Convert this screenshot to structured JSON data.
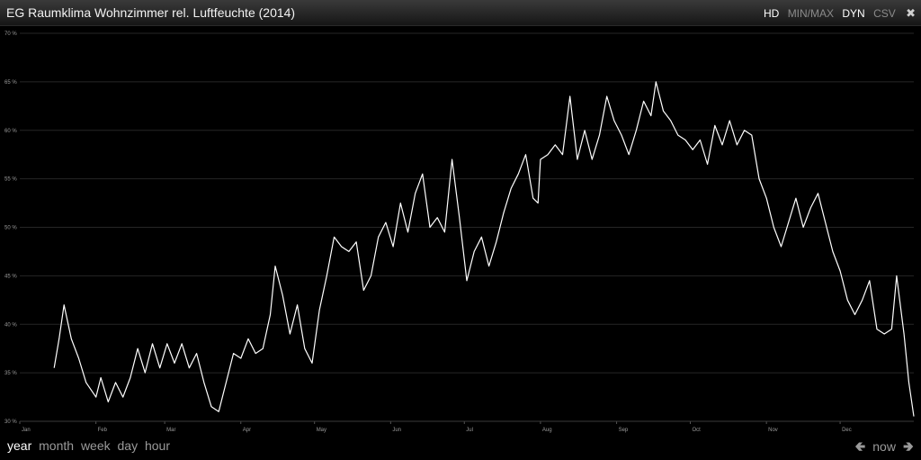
{
  "title": "EG Raumklima Wohnzimmer rel. Luftfeuchte (2014)",
  "modes": [
    {
      "label": "HD",
      "active": true
    },
    {
      "label": "MIN/MAX",
      "active": false
    },
    {
      "label": "DYN",
      "active": true
    },
    {
      "label": "CSV",
      "active": false
    }
  ],
  "close_symbol": "✖",
  "ranges": [
    "year",
    "month",
    "week",
    "day",
    "hour"
  ],
  "active_range": "year",
  "nav": {
    "prev_icon": "left-arrow-icon",
    "now_label": "now",
    "next_icon": "right-arrow-icon"
  },
  "colors": {
    "background": "#000000",
    "line": "#ffffff",
    "grid": "#262626",
    "axis_text": "#9a9a9a"
  },
  "chart_data": {
    "type": "line",
    "title": "",
    "xlabel": "",
    "ylabel": "",
    "ylim": [
      30,
      70
    ],
    "xlim": [
      "2014-01-01",
      "2014-12-31"
    ],
    "y_ticks": [
      "30 %",
      "35 %",
      "40 %",
      "45 %",
      "50 %",
      "55 %",
      "60 %",
      "65 %",
      "70 %"
    ],
    "x_ticks": [
      "Jan",
      "Feb",
      "Mar",
      "Apr",
      "May",
      "Jun",
      "Jul",
      "Aug",
      "Sep",
      "Oct",
      "Nov",
      "Dec"
    ],
    "grid": false,
    "series": [
      {
        "values": [
          [
            "2014-01-15",
            35.5
          ],
          [
            "2014-01-17",
            38.5
          ],
          [
            "2014-01-19",
            42.0
          ],
          [
            "2014-01-22",
            38.5
          ],
          [
            "2014-01-25",
            36.5
          ],
          [
            "2014-01-28",
            34.0
          ],
          [
            "2014-02-01",
            32.5
          ],
          [
            "2014-02-03",
            34.5
          ],
          [
            "2014-02-06",
            32.0
          ],
          [
            "2014-02-09",
            34.0
          ],
          [
            "2014-02-12",
            32.5
          ],
          [
            "2014-02-15",
            34.5
          ],
          [
            "2014-02-18",
            37.5
          ],
          [
            "2014-02-21",
            35.0
          ],
          [
            "2014-02-24",
            38.0
          ],
          [
            "2014-02-27",
            35.5
          ],
          [
            "2014-03-02",
            38.0
          ],
          [
            "2014-03-05",
            36.0
          ],
          [
            "2014-03-08",
            38.0
          ],
          [
            "2014-03-11",
            35.5
          ],
          [
            "2014-03-14",
            37.0
          ],
          [
            "2014-03-17",
            34.0
          ],
          [
            "2014-03-20",
            31.5
          ],
          [
            "2014-03-23",
            31.0
          ],
          [
            "2014-03-26",
            34.0
          ],
          [
            "2014-03-29",
            37.0
          ],
          [
            "2014-04-01",
            36.5
          ],
          [
            "2014-04-04",
            38.5
          ],
          [
            "2014-04-07",
            37.0
          ],
          [
            "2014-04-10",
            37.5
          ],
          [
            "2014-04-13",
            41.0
          ],
          [
            "2014-04-15",
            46.0
          ],
          [
            "2014-04-18",
            43.0
          ],
          [
            "2014-04-21",
            39.0
          ],
          [
            "2014-04-24",
            42.0
          ],
          [
            "2014-04-27",
            37.5
          ],
          [
            "2014-04-30",
            36.0
          ],
          [
            "2014-05-03",
            41.5
          ],
          [
            "2014-05-06",
            45.0
          ],
          [
            "2014-05-09",
            49.0
          ],
          [
            "2014-05-12",
            48.0
          ],
          [
            "2014-05-15",
            47.5
          ],
          [
            "2014-05-18",
            48.5
          ],
          [
            "2014-05-21",
            43.5
          ],
          [
            "2014-05-24",
            45.0
          ],
          [
            "2014-05-27",
            49.0
          ],
          [
            "2014-05-30",
            50.5
          ],
          [
            "2014-06-02",
            48.0
          ],
          [
            "2014-06-05",
            52.5
          ],
          [
            "2014-06-08",
            49.5
          ],
          [
            "2014-06-11",
            53.5
          ],
          [
            "2014-06-14",
            55.5
          ],
          [
            "2014-06-17",
            50.0
          ],
          [
            "2014-06-20",
            51.0
          ],
          [
            "2014-06-23",
            49.5
          ],
          [
            "2014-06-26",
            57.0
          ],
          [
            "2014-06-29",
            51.0
          ],
          [
            "2014-07-02",
            44.5
          ],
          [
            "2014-07-05",
            47.5
          ],
          [
            "2014-07-08",
            49.0
          ],
          [
            "2014-07-11",
            46.0
          ],
          [
            "2014-07-14",
            48.5
          ],
          [
            "2014-07-17",
            51.5
          ],
          [
            "2014-07-20",
            54.0
          ],
          [
            "2014-07-23",
            55.5
          ],
          [
            "2014-07-26",
            57.5
          ],
          [
            "2014-07-29",
            53.0
          ],
          [
            "2014-07-31",
            52.5
          ],
          [
            "2014-08-01",
            57.0
          ],
          [
            "2014-08-04",
            57.5
          ],
          [
            "2014-08-07",
            58.5
          ],
          [
            "2014-08-10",
            57.5
          ],
          [
            "2014-08-13",
            63.5
          ],
          [
            "2014-08-16",
            57.0
          ],
          [
            "2014-08-19",
            60.0
          ],
          [
            "2014-08-22",
            57.0
          ],
          [
            "2014-08-25",
            59.5
          ],
          [
            "2014-08-28",
            63.5
          ],
          [
            "2014-08-31",
            61.0
          ],
          [
            "2014-09-03",
            59.5
          ],
          [
            "2014-09-06",
            57.5
          ],
          [
            "2014-09-09",
            60.0
          ],
          [
            "2014-09-12",
            63.0
          ],
          [
            "2014-09-15",
            61.5
          ],
          [
            "2014-09-17",
            65.0
          ],
          [
            "2014-09-20",
            62.0
          ],
          [
            "2014-09-23",
            61.0
          ],
          [
            "2014-09-26",
            59.5
          ],
          [
            "2014-09-29",
            59.0
          ],
          [
            "2014-10-02",
            58.0
          ],
          [
            "2014-10-05",
            59.0
          ],
          [
            "2014-10-08",
            56.5
          ],
          [
            "2014-10-11",
            60.5
          ],
          [
            "2014-10-14",
            58.5
          ],
          [
            "2014-10-17",
            61.0
          ],
          [
            "2014-10-20",
            58.5
          ],
          [
            "2014-10-23",
            60.0
          ],
          [
            "2014-10-26",
            59.5
          ],
          [
            "2014-10-29",
            55.0
          ],
          [
            "2014-11-01",
            53.0
          ],
          [
            "2014-11-04",
            50.0
          ],
          [
            "2014-11-07",
            48.0
          ],
          [
            "2014-11-10",
            50.5
          ],
          [
            "2014-11-13",
            53.0
          ],
          [
            "2014-11-16",
            50.0
          ],
          [
            "2014-11-19",
            52.0
          ],
          [
            "2014-11-22",
            53.5
          ],
          [
            "2014-11-25",
            50.5
          ],
          [
            "2014-11-28",
            47.5
          ],
          [
            "2014-12-01",
            45.5
          ],
          [
            "2014-12-04",
            42.5
          ],
          [
            "2014-12-07",
            41.0
          ],
          [
            "2014-12-10",
            42.5
          ],
          [
            "2014-12-13",
            44.5
          ],
          [
            "2014-12-16",
            39.5
          ],
          [
            "2014-12-19",
            39.0
          ],
          [
            "2014-12-22",
            39.5
          ],
          [
            "2014-12-24",
            45.0
          ],
          [
            "2014-12-27",
            39.0
          ],
          [
            "2014-12-29",
            34.0
          ],
          [
            "2014-12-31",
            30.5
          ]
        ]
      }
    ]
  }
}
